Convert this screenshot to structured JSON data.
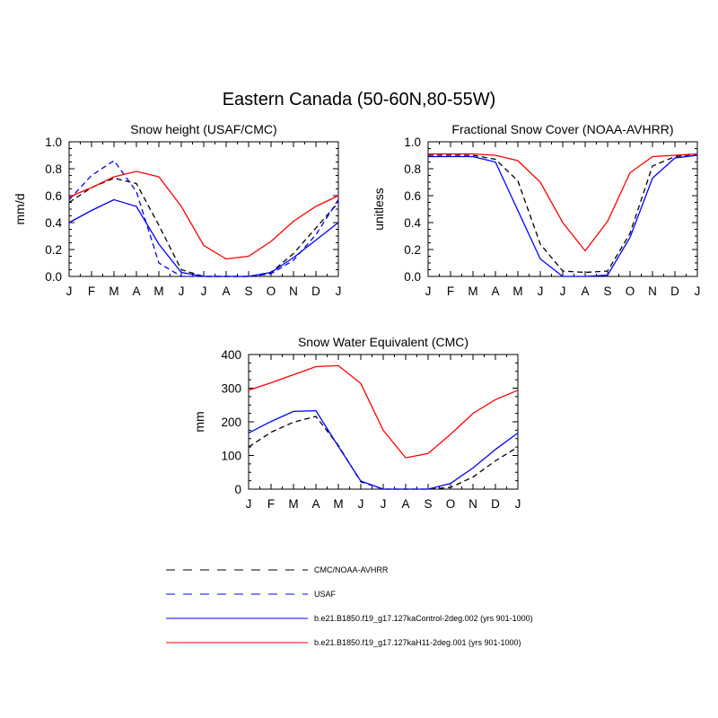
{
  "figure": {
    "title": "Eastern Canada (50-60N,80-55W)"
  },
  "colors": {
    "black": "#000000",
    "blue": "#0000ff",
    "red": "#ff0000"
  },
  "chart_data": [
    {
      "id": "snow-height",
      "type": "line",
      "title": "Snow height (USAF/CMC)",
      "xlabel": "",
      "ylabel": "mm/d",
      "categories": [
        "J",
        "F",
        "M",
        "A",
        "M",
        "J",
        "J",
        "A",
        "S",
        "O",
        "N",
        "D",
        "J"
      ],
      "ylim": [
        0,
        1.0
      ],
      "yticks": [
        0.0,
        0.2,
        0.4,
        0.6,
        0.8,
        1.0
      ],
      "ytick_labels": [
        "0.0",
        "0.2",
        "0.4",
        "0.6",
        "0.8",
        "1.0"
      ],
      "series": [
        {
          "name": "CMC/NOAA-AVHRR",
          "color": "black",
          "dash": "dashed",
          "values": [
            0.55,
            0.66,
            0.73,
            0.69,
            0.38,
            0.05,
            0.0,
            0.0,
            0.0,
            0.03,
            0.17,
            0.36,
            0.55
          ]
        },
        {
          "name": "USAF",
          "color": "blue",
          "dash": "dashed",
          "values": [
            0.57,
            0.75,
            0.86,
            0.63,
            0.1,
            0.0,
            0.0,
            0.0,
            0.0,
            0.02,
            0.12,
            0.31,
            0.57
          ]
        },
        {
          "name": "b.e21.B1850.f19_g17.127kaControl-2deg.002 (yrs 901-1000)",
          "color": "blue",
          "dash": "solid",
          "values": [
            0.4,
            0.49,
            0.57,
            0.52,
            0.24,
            0.03,
            0.0,
            0.0,
            0.0,
            0.03,
            0.14,
            0.27,
            0.4
          ]
        },
        {
          "name": "b.e21.B1850.f19_g17.127kaH11-2deg.001 (yrs 901-1000)",
          "color": "red",
          "dash": "solid",
          "values": [
            0.59,
            0.66,
            0.74,
            0.78,
            0.74,
            0.52,
            0.23,
            0.13,
            0.15,
            0.26,
            0.41,
            0.52,
            0.6
          ]
        }
      ]
    },
    {
      "id": "snow-cover",
      "type": "line",
      "title": "Fractional Snow Cover (NOAA-AVHRR)",
      "xlabel": "",
      "ylabel": "unitless",
      "categories": [
        "J",
        "F",
        "M",
        "A",
        "M",
        "J",
        "J",
        "A",
        "S",
        "O",
        "N",
        "D",
        "J"
      ],
      "ylim": [
        0,
        1.0
      ],
      "yticks": [
        0.0,
        0.2,
        0.4,
        0.6,
        0.8,
        1.0
      ],
      "ytick_labels": [
        "0.0",
        "0.2",
        "0.4",
        "0.6",
        "0.8",
        "1.0"
      ],
      "series": [
        {
          "name": "CMC/NOAA-AVHRR",
          "color": "black",
          "dash": "dashed",
          "values": [
            0.9,
            0.9,
            0.9,
            0.87,
            0.71,
            0.24,
            0.04,
            0.03,
            0.04,
            0.32,
            0.82,
            0.89,
            0.91
          ]
        },
        {
          "name": "b.e21.B1850.f19_g17.127kaControl-2deg.002 (yrs 901-1000)",
          "color": "blue",
          "dash": "solid",
          "values": [
            0.89,
            0.89,
            0.89,
            0.85,
            0.49,
            0.13,
            0.0,
            0.0,
            0.01,
            0.29,
            0.73,
            0.88,
            0.9
          ]
        },
        {
          "name": "b.e21.B1850.f19_g17.127kaH11-2deg.001 (yrs 901-1000)",
          "color": "red",
          "dash": "solid",
          "values": [
            0.91,
            0.91,
            0.91,
            0.9,
            0.86,
            0.7,
            0.4,
            0.19,
            0.41,
            0.77,
            0.89,
            0.9,
            0.91
          ]
        }
      ]
    },
    {
      "id": "swe",
      "type": "line",
      "title": "Snow Water Equivalent (CMC)",
      "xlabel": "",
      "ylabel": "mm",
      "categories": [
        "J",
        "F",
        "M",
        "A",
        "M",
        "J",
        "J",
        "A",
        "S",
        "O",
        "N",
        "D",
        "J"
      ],
      "ylim": [
        0,
        400
      ],
      "yticks": [
        0,
        100,
        200,
        300,
        400
      ],
      "ytick_labels": [
        "0",
        "100",
        "200",
        "300",
        "400"
      ],
      "series": [
        {
          "name": "CMC/NOAA-AVHRR",
          "color": "black",
          "dash": "dashed",
          "values": [
            125,
            169,
            199,
            216,
            130,
            22,
            0,
            0,
            0,
            5,
            36,
            84,
            125
          ]
        },
        {
          "name": "b.e21.B1850.f19_g17.127kaControl-2deg.002 (yrs 901-1000)",
          "color": "blue",
          "dash": "solid",
          "values": [
            167,
            201,
            231,
            233,
            127,
            24,
            0,
            0,
            0,
            17,
            63,
            118,
            167
          ]
        },
        {
          "name": "b.e21.B1850.f19_g17.127kaH11-2deg.001 (yrs 901-1000)",
          "color": "red",
          "dash": "solid",
          "values": [
            294,
            316,
            340,
            364,
            367,
            314,
            175,
            93,
            106,
            163,
            225,
            266,
            294
          ]
        }
      ]
    }
  ],
  "legend": {
    "entries": [
      {
        "label": "CMC/NOAA-AVHRR",
        "color": "black",
        "dash": "dashed"
      },
      {
        "label": "USAF",
        "color": "blue",
        "dash": "dashed"
      },
      {
        "label": "b.e21.B1850.f19_g17.127kaControl-2deg.002 (yrs 901-1000)",
        "color": "blue",
        "dash": "solid"
      },
      {
        "label": "b.e21.B1850.f19_g17.127kaH11-2deg.001 (yrs 901-1000)",
        "color": "red",
        "dash": "solid"
      }
    ]
  }
}
